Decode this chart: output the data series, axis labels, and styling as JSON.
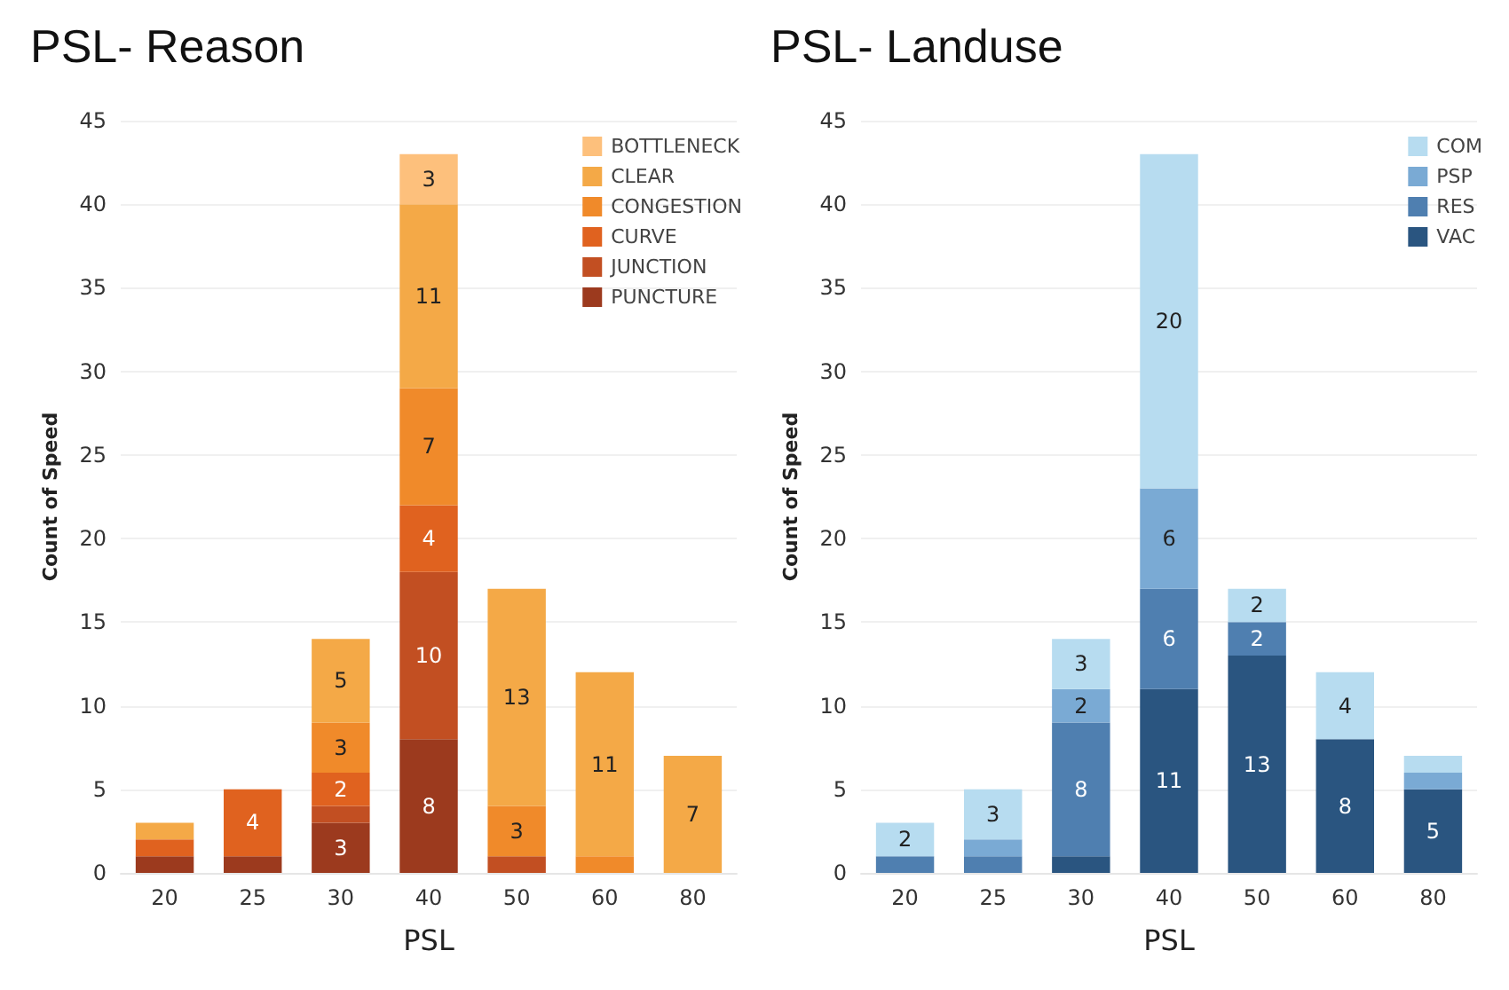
{
  "chart_data": [
    {
      "type": "bar",
      "title": "PSL- Reason",
      "xlabel": "PSL",
      "ylabel": "Count of Speed",
      "categories": [
        "20",
        "25",
        "30",
        "40",
        "50",
        "60",
        "80"
      ],
      "stacked": true,
      "ylim": [
        0,
        45
      ],
      "yticks": [
        0,
        5,
        10,
        15,
        20,
        25,
        30,
        35,
        40,
        45
      ],
      "grid": "y",
      "legend": "top right",
      "series": [
        {
          "name": "PUNCTURE",
          "color": "#9c3a1e",
          "values": [
            1,
            1,
            3,
            8,
            null,
            null,
            null
          ],
          "value_labels": [
            null,
            null,
            "3",
            "8",
            null,
            null,
            null
          ]
        },
        {
          "name": "JUNCTION",
          "color": "#c24f22",
          "values": [
            null,
            null,
            1,
            10,
            1,
            null,
            null
          ],
          "value_labels": [
            null,
            null,
            null,
            "10",
            null,
            null,
            null
          ]
        },
        {
          "name": "CURVE",
          "color": "#e0621f",
          "values": [
            1,
            4,
            2,
            4,
            null,
            null,
            null
          ],
          "value_labels": [
            null,
            "4",
            "2",
            "4",
            null,
            null,
            null
          ]
        },
        {
          "name": "CONGESTION",
          "color": "#f08a2a",
          "values": [
            null,
            null,
            3,
            7,
            3,
            1,
            null
          ],
          "value_labels": [
            null,
            null,
            "3",
            "7",
            "3",
            null,
            null
          ]
        },
        {
          "name": "CLEAR",
          "color": "#f4a947",
          "values": [
            1,
            null,
            5,
            11,
            13,
            11,
            7
          ],
          "value_labels": [
            null,
            null,
            "5",
            "11",
            "13",
            "11",
            "7"
          ]
        },
        {
          "name": "BOTTLENECK",
          "color": "#fdc07c",
          "values": [
            null,
            null,
            null,
            3,
            null,
            null,
            null
          ],
          "value_labels": [
            null,
            null,
            null,
            "3",
            null,
            null,
            null
          ]
        }
      ]
    },
    {
      "type": "bar",
      "title": "PSL- Landuse",
      "xlabel": "PSL",
      "ylabel": "Count of Speed",
      "categories": [
        "20",
        "25",
        "30",
        "40",
        "50",
        "60",
        "80"
      ],
      "stacked": true,
      "ylim": [
        0,
        45
      ],
      "yticks": [
        0,
        5,
        10,
        15,
        20,
        25,
        30,
        35,
        40,
        45
      ],
      "grid": "y",
      "legend": "top right",
      "series": [
        {
          "name": "VAC",
          "color": "#2a5580",
          "values": [
            null,
            null,
            1,
            11,
            13,
            8,
            5
          ],
          "value_labels": [
            null,
            null,
            null,
            "11",
            "13",
            "8",
            "5"
          ]
        },
        {
          "name": "RES",
          "color": "#4f7fb0",
          "values": [
            1,
            1,
            8,
            6,
            2,
            null,
            null
          ],
          "value_labels": [
            null,
            null,
            "8",
            "6",
            "2",
            null,
            null
          ]
        },
        {
          "name": "PSP",
          "color": "#7aaad4",
          "values": [
            null,
            1,
            2,
            6,
            null,
            null,
            1
          ],
          "value_labels": [
            null,
            null,
            "2",
            "6",
            null,
            null,
            null
          ]
        },
        {
          "name": "COM",
          "color": "#b7dcf0",
          "values": [
            2,
            3,
            3,
            20,
            2,
            4,
            1
          ],
          "value_labels": [
            "2",
            "3",
            "3",
            "20",
            "2",
            "4",
            null
          ]
        }
      ]
    }
  ]
}
